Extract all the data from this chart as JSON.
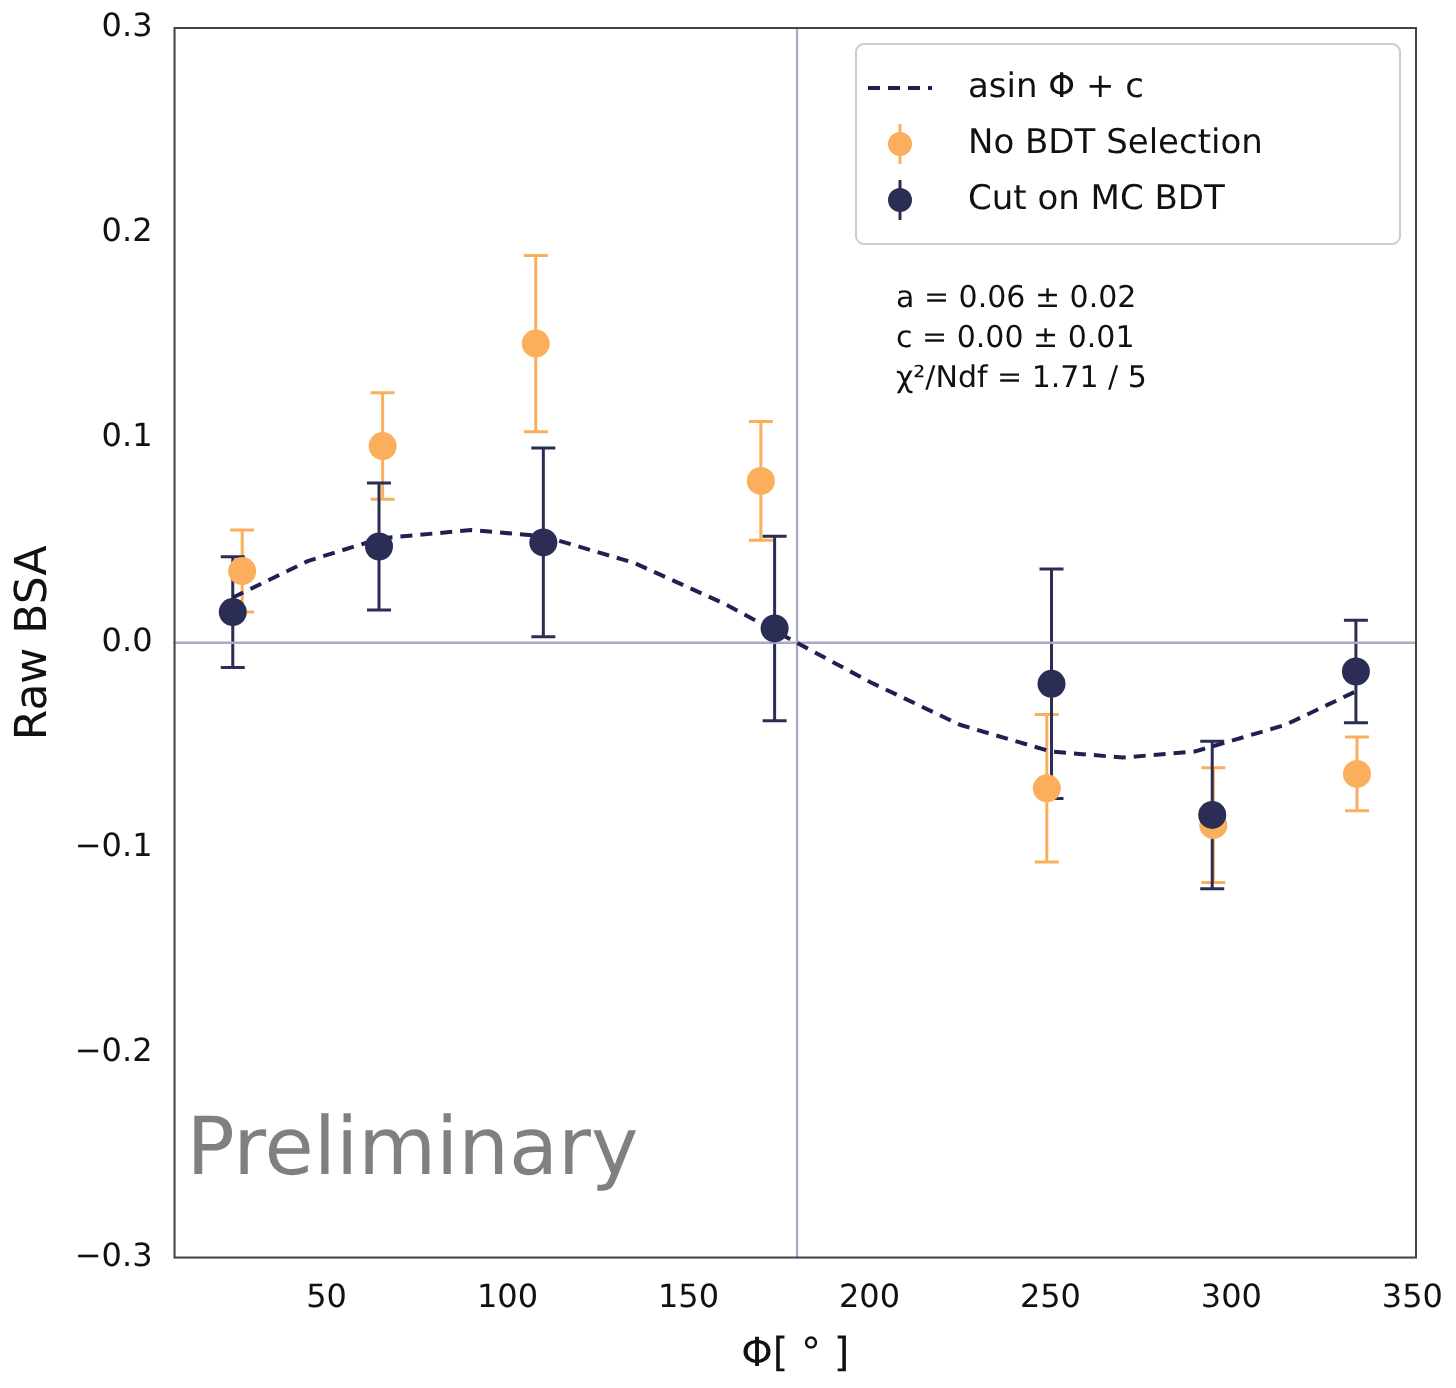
{
  "chart_data": {
    "type": "scatter",
    "xlabel": "Φ[ ° ]",
    "ylabel": "Raw BSA",
    "xlim": [
      8,
      351
    ],
    "xticks": [
      50,
      100,
      150,
      200,
      250,
      300,
      350
    ],
    "ylim": [
      -0.3,
      0.3
    ],
    "yticks": [
      {
        "value": -0.3,
        "label": "−0.3"
      },
      {
        "value": -0.2,
        "label": "−0.2"
      },
      {
        "value": -0.1,
        "label": "−0.1"
      },
      {
        "value": 0,
        "label": "0.0"
      },
      0.1,
      0.2,
      0.3
    ],
    "grid": false,
    "legend": "top right",
    "marker": "circle",
    "series": [
      {
        "name": "asin Φ + c",
        "type": "line",
        "line_style": "dashed",
        "marker": "none",
        "color": "#1f2150",
        "x": [
          24,
          45,
          65,
          90,
          110,
          135,
          160,
          180,
          200,
          225,
          250,
          270,
          290,
          315,
          334
        ],
        "values": [
          0.022,
          0.04,
          0.051,
          0.055,
          0.052,
          0.039,
          0.019,
          0.0,
          -0.019,
          -0.04,
          -0.053,
          -0.056,
          -0.053,
          -0.04,
          -0.024
        ]
      },
      {
        "name": "No BDT Selection",
        "color": "#fbae5c",
        "x": [
          26.7,
          65.5,
          107.8,
          170,
          249,
          295,
          334.7
        ],
        "values": [
          0.035,
          0.096,
          0.146,
          0.079,
          -0.071,
          -0.089,
          -0.064
        ],
        "errors": [
          0.02,
          0.026,
          0.043,
          0.029,
          0.036,
          0.028,
          0.018
        ]
      },
      {
        "name": "Cut on MC BDT",
        "color": "#2b2d55",
        "x": [
          24.1,
          64.5,
          109.9,
          173.8,
          250.3,
          294.7,
          334.4
        ],
        "values": [
          0.015,
          0.047,
          0.049,
          0.007,
          -0.02,
          -0.084,
          -0.014
        ],
        "errors": [
          0.027,
          0.031,
          0.046,
          0.045,
          0.056,
          0.036,
          0.025
        ]
      }
    ],
    "ref_lines": [
      {
        "axis": "x",
        "value": 180,
        "color": "#a9a9c8"
      },
      {
        "axis": "y",
        "value": 0,
        "color": "#a9a9c8"
      }
    ],
    "annotations": [
      "a = 0.06 ± 0.02",
      "c = 0.00 ± 0.01",
      "χ²/Ndf = 1.71 / 5",
      "Preliminary"
    ]
  }
}
